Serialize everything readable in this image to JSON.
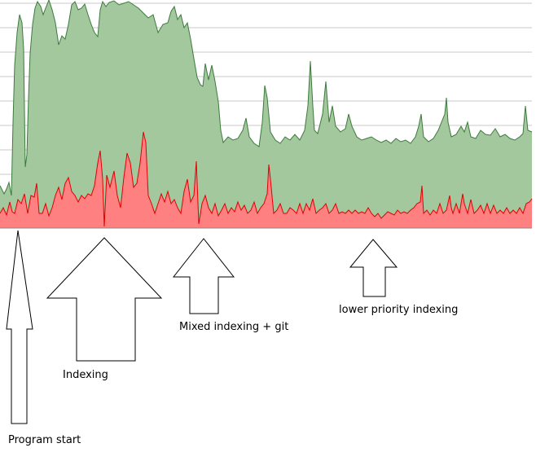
{
  "chart_data": {
    "type": "area",
    "title": "",
    "xlabel": "",
    "ylabel": "",
    "ylim": [
      0,
      280
    ],
    "xlim": [
      0,
      653
    ],
    "grid": true,
    "series": [
      {
        "color": "#a3c89e",
        "line_color": "#3d7a3d",
        "points": [
          [
            0,
            228
          ],
          [
            5,
            238
          ],
          [
            8,
            232
          ],
          [
            11,
            224
          ],
          [
            14,
            240
          ],
          [
            16,
            150
          ],
          [
            18,
            80
          ],
          [
            21,
            40
          ],
          [
            24,
            18
          ],
          [
            27,
            28
          ],
          [
            29,
            60
          ],
          [
            31,
            205
          ],
          [
            33,
            190
          ],
          [
            35,
            120
          ],
          [
            37,
            65
          ],
          [
            40,
            30
          ],
          [
            43,
            10
          ],
          [
            46,
            2
          ],
          [
            50,
            8
          ],
          [
            53,
            18
          ],
          [
            56,
            10
          ],
          [
            60,
            0
          ],
          [
            64,
            12
          ],
          [
            68,
            28
          ],
          [
            72,
            55
          ],
          [
            76,
            44
          ],
          [
            80,
            48
          ],
          [
            84,
            30
          ],
          [
            88,
            6
          ],
          [
            92,
            2
          ],
          [
            96,
            12
          ],
          [
            100,
            10
          ],
          [
            104,
            5
          ],
          [
            108,
            18
          ],
          [
            112,
            30
          ],
          [
            116,
            40
          ],
          [
            120,
            45
          ],
          [
            123,
            12
          ],
          [
            126,
            2
          ],
          [
            130,
            8
          ],
          [
            134,
            3
          ],
          [
            140,
            1
          ],
          [
            146,
            6
          ],
          [
            152,
            4
          ],
          [
            158,
            2
          ],
          [
            164,
            6
          ],
          [
            170,
            10
          ],
          [
            176,
            16
          ],
          [
            182,
            22
          ],
          [
            188,
            18
          ],
          [
            194,
            40
          ],
          [
            200,
            30
          ],
          [
            206,
            28
          ],
          [
            210,
            14
          ],
          [
            214,
            8
          ],
          [
            218,
            24
          ],
          [
            222,
            18
          ],
          [
            226,
            34
          ],
          [
            230,
            28
          ],
          [
            234,
            48
          ],
          [
            238,
            72
          ],
          [
            242,
            95
          ],
          [
            246,
            104
          ],
          [
            249,
            106
          ],
          [
            252,
            78
          ],
          [
            256,
            98
          ],
          [
            260,
            80
          ],
          [
            264,
            100
          ],
          [
            268,
            125
          ],
          [
            271,
            160
          ],
          [
            274,
            175
          ],
          [
            280,
            168
          ],
          [
            286,
            172
          ],
          [
            292,
            170
          ],
          [
            298,
            160
          ],
          [
            302,
            145
          ],
          [
            306,
            168
          ],
          [
            312,
            176
          ],
          [
            318,
            180
          ],
          [
            322,
            150
          ],
          [
            325,
            105
          ],
          [
            328,
            120
          ],
          [
            332,
            162
          ],
          [
            338,
            172
          ],
          [
            344,
            176
          ],
          [
            350,
            168
          ],
          [
            356,
            172
          ],
          [
            362,
            165
          ],
          [
            368,
            172
          ],
          [
            374,
            160
          ],
          [
            378,
            130
          ],
          [
            381,
            75
          ],
          [
            384,
            130
          ],
          [
            386,
            160
          ],
          [
            390,
            164
          ],
          [
            396,
            140
          ],
          [
            400,
            100
          ],
          [
            404,
            150
          ],
          [
            408,
            130
          ],
          [
            412,
            155
          ],
          [
            418,
            162
          ],
          [
            424,
            158
          ],
          [
            428,
            140
          ],
          [
            432,
            155
          ],
          [
            438,
            168
          ],
          [
            444,
            172
          ],
          [
            450,
            170
          ],
          [
            456,
            168
          ],
          [
            462,
            172
          ],
          [
            468,
            175
          ],
          [
            474,
            172
          ],
          [
            480,
            176
          ],
          [
            486,
            170
          ],
          [
            492,
            174
          ],
          [
            498,
            172
          ],
          [
            504,
            176
          ],
          [
            510,
            168
          ],
          [
            514,
            155
          ],
          [
            517,
            140
          ],
          [
            520,
            168
          ],
          [
            526,
            174
          ],
          [
            532,
            170
          ],
          [
            538,
            160
          ],
          [
            542,
            150
          ],
          [
            546,
            140
          ],
          [
            548,
            120
          ],
          [
            550,
            150
          ],
          [
            554,
            168
          ],
          [
            560,
            165
          ],
          [
            566,
            155
          ],
          [
            570,
            162
          ],
          [
            574,
            150
          ],
          [
            578,
            168
          ],
          [
            584,
            170
          ],
          [
            590,
            160
          ],
          [
            596,
            165
          ],
          [
            602,
            166
          ],
          [
            608,
            158
          ],
          [
            614,
            168
          ],
          [
            620,
            165
          ],
          [
            626,
            170
          ],
          [
            632,
            172
          ],
          [
            638,
            168
          ],
          [
            642,
            164
          ],
          [
            645,
            130
          ],
          [
            648,
            160
          ],
          [
            653,
            162
          ]
        ]
      },
      {
        "color": "#ff8080",
        "line_color": "#e00000",
        "points": [
          [
            0,
            262
          ],
          [
            4,
            255
          ],
          [
            8,
            264
          ],
          [
            12,
            248
          ],
          [
            15,
            260
          ],
          [
            18,
            262
          ],
          [
            22,
            245
          ],
          [
            26,
            250
          ],
          [
            30,
            238
          ],
          [
            34,
            262
          ],
          [
            38,
            240
          ],
          [
            42,
            242
          ],
          [
            45,
            225
          ],
          [
            48,
            262
          ],
          [
            52,
            262
          ],
          [
            56,
            250
          ],
          [
            60,
            265
          ],
          [
            64,
            255
          ],
          [
            68,
            240
          ],
          [
            72,
            230
          ],
          [
            76,
            245
          ],
          [
            80,
            225
          ],
          [
            84,
            218
          ],
          [
            88,
            235
          ],
          [
            92,
            240
          ],
          [
            96,
            248
          ],
          [
            100,
            240
          ],
          [
            104,
            244
          ],
          [
            108,
            238
          ],
          [
            112,
            240
          ],
          [
            116,
            228
          ],
          [
            120,
            200
          ],
          [
            123,
            185
          ],
          [
            126,
            220
          ],
          [
            128,
            278
          ],
          [
            131,
            215
          ],
          [
            135,
            230
          ],
          [
            140,
            210
          ],
          [
            144,
            240
          ],
          [
            148,
            255
          ],
          [
            152,
            218
          ],
          [
            156,
            188
          ],
          [
            160,
            200
          ],
          [
            164,
            230
          ],
          [
            168,
            225
          ],
          [
            172,
            200
          ],
          [
            176,
            162
          ],
          [
            179,
            175
          ],
          [
            182,
            240
          ],
          [
            186,
            250
          ],
          [
            190,
            262
          ],
          [
            194,
            250
          ],
          [
            198,
            238
          ],
          [
            202,
            248
          ],
          [
            206,
            235
          ],
          [
            210,
            250
          ],
          [
            214,
            245
          ],
          [
            218,
            255
          ],
          [
            222,
            262
          ],
          [
            226,
            235
          ],
          [
            230,
            220
          ],
          [
            234,
            248
          ],
          [
            238,
            240
          ],
          [
            241,
            198
          ],
          [
            244,
            275
          ],
          [
            248,
            250
          ],
          [
            252,
            240
          ],
          [
            256,
            255
          ],
          [
            260,
            262
          ],
          [
            264,
            250
          ],
          [
            268,
            265
          ],
          [
            272,
            258
          ],
          [
            276,
            250
          ],
          [
            280,
            262
          ],
          [
            284,
            255
          ],
          [
            288,
            260
          ],
          [
            292,
            248
          ],
          [
            296,
            258
          ],
          [
            300,
            252
          ],
          [
            304,
            262
          ],
          [
            308,
            258
          ],
          [
            312,
            248
          ],
          [
            316,
            262
          ],
          [
            320,
            255
          ],
          [
            324,
            250
          ],
          [
            328,
            238
          ],
          [
            330,
            202
          ],
          [
            332,
            220
          ],
          [
            336,
            262
          ],
          [
            340,
            258
          ],
          [
            344,
            250
          ],
          [
            348,
            262
          ],
          [
            352,
            262
          ],
          [
            356,
            255
          ],
          [
            360,
            258
          ],
          [
            364,
            262
          ],
          [
            368,
            250
          ],
          [
            372,
            262
          ],
          [
            376,
            250
          ],
          [
            380,
            258
          ],
          [
            384,
            244
          ],
          [
            388,
            262
          ],
          [
            392,
            258
          ],
          [
            396,
            255
          ],
          [
            400,
            250
          ],
          [
            404,
            262
          ],
          [
            408,
            258
          ],
          [
            412,
            250
          ],
          [
            416,
            262
          ],
          [
            420,
            260
          ],
          [
            424,
            262
          ],
          [
            428,
            258
          ],
          [
            432,
            262
          ],
          [
            436,
            258
          ],
          [
            440,
            262
          ],
          [
            444,
            260
          ],
          [
            448,
            262
          ],
          [
            452,
            255
          ],
          [
            456,
            262
          ],
          [
            460,
            266
          ],
          [
            464,
            262
          ],
          [
            468,
            268
          ],
          [
            472,
            264
          ],
          [
            476,
            260
          ],
          [
            480,
            262
          ],
          [
            484,
            264
          ],
          [
            488,
            258
          ],
          [
            492,
            262
          ],
          [
            496,
            260
          ],
          [
            500,
            262
          ],
          [
            504,
            258
          ],
          [
            508,
            255
          ],
          [
            512,
            250
          ],
          [
            516,
            248
          ],
          [
            518,
            228
          ],
          [
            520,
            262
          ],
          [
            524,
            258
          ],
          [
            528,
            264
          ],
          [
            532,
            258
          ],
          [
            536,
            262
          ],
          [
            540,
            250
          ],
          [
            544,
            262
          ],
          [
            548,
            258
          ],
          [
            552,
            240
          ],
          [
            554,
            255
          ],
          [
            556,
            262
          ],
          [
            560,
            250
          ],
          [
            564,
            262
          ],
          [
            568,
            238
          ],
          [
            570,
            250
          ],
          [
            574,
            262
          ],
          [
            578,
            245
          ],
          [
            582,
            262
          ],
          [
            586,
            258
          ],
          [
            590,
            252
          ],
          [
            594,
            262
          ],
          [
            598,
            250
          ],
          [
            602,
            262
          ],
          [
            606,
            252
          ],
          [
            610,
            262
          ],
          [
            614,
            258
          ],
          [
            618,
            262
          ],
          [
            622,
            255
          ],
          [
            626,
            262
          ],
          [
            630,
            258
          ],
          [
            634,
            262
          ],
          [
            638,
            255
          ],
          [
            642,
            262
          ],
          [
            646,
            250
          ],
          [
            650,
            248
          ],
          [
            653,
            244
          ]
        ]
      }
    ],
    "annotations": [
      {
        "text": "Program start",
        "target_x": 22
      },
      {
        "text": "Indexing",
        "target_x": 128
      },
      {
        "text": "Mixed indexing + git",
        "target_x": 250
      },
      {
        "text": "lower priority indexing",
        "target_x": 458
      }
    ]
  }
}
